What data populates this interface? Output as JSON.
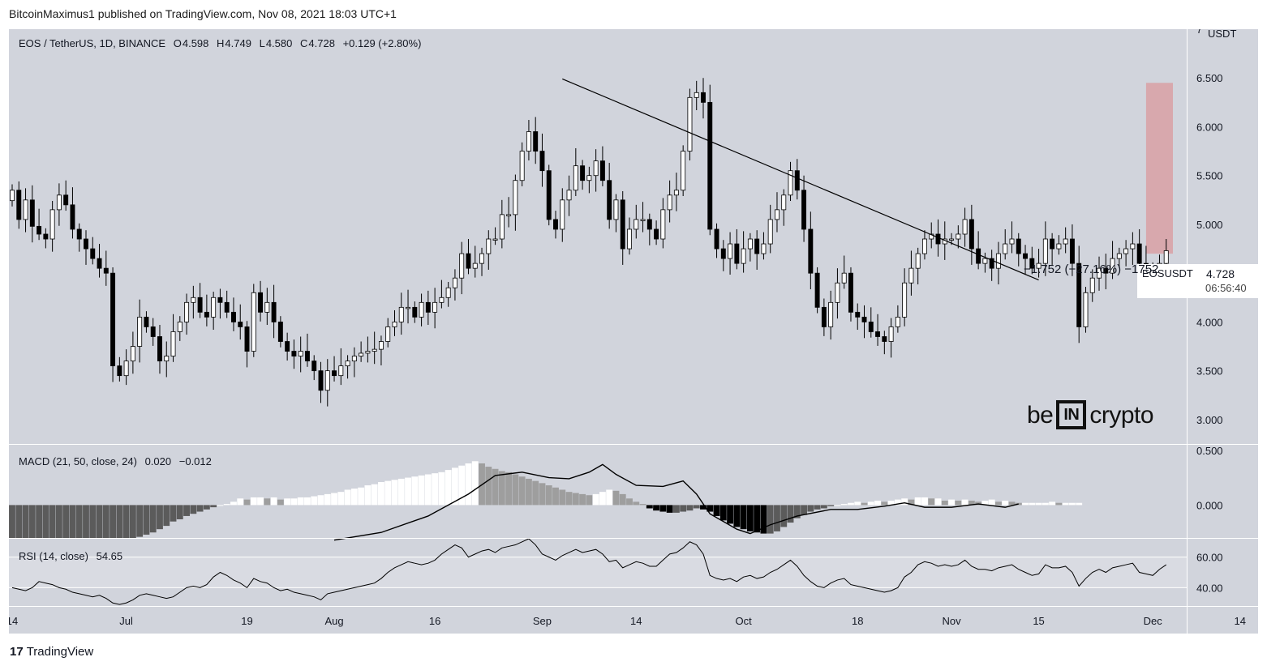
{
  "header": {
    "attribution": "BitcoinMaximus1 published on TradingView.com, Nov 08, 2021 18:03 UTC+1"
  },
  "legend": {
    "symbol": "EOS / TetherUS, 1D, BINANCE",
    "open_label": "O",
    "open": "4.598",
    "high_label": "H",
    "high": "4.749",
    "low_label": "L",
    "low": "4.580",
    "close_label": "C",
    "close": "4.728",
    "change": "+0.129 (+2.80%)"
  },
  "macd_legend": {
    "label": "MACD (21, 50, close, 24)",
    "v1": "0.020",
    "v2": "−0.012"
  },
  "rsi_legend": {
    "label": "RSI (14, close)",
    "value": "54.65"
  },
  "price_box": {
    "symbol": "EOSUSDT",
    "price": "4.728",
    "countdown": "06:56:40"
  },
  "measure_label": "−1.752 (−27.16%) −1752",
  "logo": {
    "left": "be",
    "box": "IN",
    "right": "crypto"
  },
  "footer": {
    "brand": "TradingView"
  },
  "colors": {
    "background": "#d1d4dc",
    "candle_up": "#ffffff",
    "candle_down": "#000000",
    "target_zone": "#d8a8ad",
    "macd_line": "#000000",
    "rsi_line": "#000000"
  },
  "chart_data": [
    {
      "type": "candlestick",
      "title": "EOS / TetherUS, 1D, BINANCE",
      "ylabel": "USDT",
      "ylim": [
        2.75,
        7.0
      ],
      "y_ticks": [
        "7",
        "6.500",
        "6.000",
        "5.500",
        "5.000",
        "4.500",
        "4.000",
        "3.500",
        "3.000"
      ],
      "x_ticks": [
        "14",
        "Jul",
        "19",
        "Aug",
        "16",
        "Sep",
        "14",
        "Oct",
        "18",
        "Nov",
        "15",
        "Dec",
        "14"
      ],
      "x_tick_days": [
        0,
        17,
        35,
        48,
        63,
        79,
        93,
        109,
        126,
        140,
        153,
        170,
        183
      ],
      "x_range_days": [
        0,
        184
      ],
      "last_price": 4.728,
      "trendline": {
        "from": {
          "day": 82,
          "price": 6.49
        },
        "to": {
          "day": 153,
          "price": 4.43
        }
      },
      "target_zone": {
        "day_from": 169,
        "day_to": 173,
        "price_from": 4.7,
        "price_to": 6.45
      },
      "grid": false,
      "closes": [
        5.35,
        5.05,
        5.25,
        4.98,
        4.9,
        4.85,
        5.15,
        5.3,
        5.2,
        4.95,
        4.85,
        4.75,
        4.65,
        4.55,
        4.5,
        3.55,
        3.45,
        3.6,
        3.75,
        4.05,
        3.95,
        3.85,
        3.6,
        3.65,
        3.9,
        4.0,
        4.2,
        4.25,
        4.1,
        4.05,
        4.25,
        4.2,
        4.1,
        4.0,
        3.95,
        3.7,
        4.3,
        4.1,
        4.2,
        4.0,
        3.8,
        3.7,
        3.65,
        3.7,
        3.6,
        3.5,
        3.3,
        3.5,
        3.45,
        3.55,
        3.6,
        3.65,
        3.68,
        3.7,
        3.72,
        3.8,
        3.95,
        4.0,
        4.15,
        4.15,
        4.05,
        4.2,
        4.1,
        4.2,
        4.25,
        4.35,
        4.45,
        4.7,
        4.55,
        4.6,
        4.7,
        4.85,
        4.85,
        5.1,
        5.1,
        5.45,
        5.75,
        5.95,
        5.75,
        5.55,
        5.05,
        4.95,
        5.25,
        5.35,
        5.6,
        5.45,
        5.5,
        5.65,
        5.45,
        5.05,
        5.25,
        4.75,
        4.95,
        5.05,
        5.05,
        4.95,
        4.85,
        5.15,
        5.3,
        5.35,
        5.75,
        6.3,
        6.35,
        6.25,
        4.95,
        4.75,
        4.65,
        4.8,
        4.6,
        4.75,
        4.85,
        4.7,
        4.8,
        5.05,
        5.15,
        5.3,
        5.55,
        5.35,
        4.95,
        4.5,
        4.15,
        3.95,
        4.2,
        4.4,
        4.5,
        4.1,
        4.05,
        4.0,
        3.9,
        3.85,
        3.8,
        3.95,
        4.05,
        4.4,
        4.55,
        4.7,
        4.85,
        4.9,
        4.8,
        4.85,
        4.85,
        4.9,
        5.05,
        4.75,
        4.6,
        4.65,
        4.55,
        4.7,
        4.8,
        4.85,
        4.7,
        4.65,
        4.55,
        4.6,
        4.85,
        4.75,
        4.8,
        4.85,
        4.6,
        3.95,
        4.3,
        4.45,
        4.55,
        4.5,
        4.65,
        4.7,
        4.75,
        4.8,
        4.6,
        4.55,
        4.48,
        4.6,
        4.73
      ]
    },
    {
      "type": "histogram+line",
      "title": "MACD (21, 50, close, 24)",
      "ylim": [
        -0.3,
        0.55
      ],
      "y_ticks": [
        "0.500",
        "0.000"
      ],
      "histogram": [
        -0.3,
        -0.3,
        -0.3,
        -0.3,
        -0.3,
        -0.3,
        -0.3,
        -0.3,
        -0.3,
        -0.3,
        -0.3,
        -0.3,
        -0.3,
        -0.3,
        -0.3,
        -0.3,
        -0.3,
        -0.3,
        -0.3,
        -0.29,
        -0.27,
        -0.25,
        -0.22,
        -0.19,
        -0.15,
        -0.13,
        -0.1,
        -0.08,
        -0.06,
        -0.04,
        -0.02,
        0.0,
        0.01,
        0.03,
        0.06,
        0.05,
        0.07,
        0.07,
        0.06,
        0.07,
        0.05,
        0.06,
        0.06,
        0.07,
        0.07,
        0.08,
        0.09,
        0.1,
        0.11,
        0.12,
        0.14,
        0.15,
        0.16,
        0.18,
        0.19,
        0.21,
        0.22,
        0.23,
        0.24,
        0.25,
        0.26,
        0.27,
        0.28,
        0.29,
        0.3,
        0.32,
        0.34,
        0.36,
        0.38,
        0.4,
        0.38,
        0.35,
        0.33,
        0.31,
        0.3,
        0.28,
        0.26,
        0.24,
        0.22,
        0.2,
        0.18,
        0.16,
        0.14,
        0.12,
        0.11,
        0.1,
        0.09,
        0.1,
        0.12,
        0.14,
        0.13,
        0.1,
        0.06,
        0.03,
        0.01,
        -0.03,
        -0.05,
        -0.06,
        -0.07,
        -0.07,
        -0.06,
        -0.05,
        -0.03,
        -0.04,
        -0.06,
        -0.1,
        -0.14,
        -0.17,
        -0.2,
        -0.22,
        -0.24,
        -0.25,
        -0.26,
        -0.26,
        -0.24,
        -0.2,
        -0.16,
        -0.12,
        -0.09,
        -0.06,
        -0.04,
        -0.03,
        -0.01,
        0.0,
        0.01,
        0.02,
        0.03,
        0.02,
        0.03,
        0.04,
        0.03,
        0.04,
        0.05,
        0.06,
        0.05,
        0.07,
        0.07,
        0.06,
        0.06,
        0.04,
        0.05,
        0.04,
        0.05,
        0.04,
        0.03,
        0.04,
        0.05,
        0.03,
        0.04,
        0.03,
        0.02,
        0.02,
        0.02,
        0.02,
        0.02,
        0.03,
        0.02,
        0.02,
        0.02,
        0.02
      ],
      "macd_line_points": [
        [
          48,
          -0.32
        ],
        [
          55,
          -0.25
        ],
        [
          62,
          -0.1
        ],
        [
          68,
          0.1
        ],
        [
          72,
          0.27
        ],
        [
          76,
          0.3
        ],
        [
          80,
          0.25
        ],
        [
          83,
          0.24
        ],
        [
          86,
          0.3
        ],
        [
          88,
          0.37
        ],
        [
          90,
          0.28
        ],
        [
          93,
          0.18
        ],
        [
          97,
          0.17
        ],
        [
          100,
          0.22
        ],
        [
          102,
          0.1
        ],
        [
          104,
          -0.08
        ],
        [
          108,
          -0.22
        ],
        [
          110,
          -0.26
        ],
        [
          113,
          -0.18
        ],
        [
          117,
          -0.1
        ],
        [
          122,
          -0.04
        ],
        [
          126,
          -0.04
        ],
        [
          130,
          -0.01
        ],
        [
          133,
          0.02
        ],
        [
          136,
          -0.02
        ],
        [
          140,
          -0.02
        ],
        [
          144,
          0.01
        ],
        [
          148,
          -0.02
        ],
        [
          150,
          0.01
        ]
      ]
    },
    {
      "type": "line",
      "title": "RSI (14, close)",
      "ylim": [
        28,
        72
      ],
      "y_ticks": [
        "60.00",
        "40.00"
      ],
      "band": [
        40,
        60
      ],
      "values": [
        40,
        39,
        38,
        40,
        44,
        43,
        42,
        40,
        39,
        37,
        36,
        35,
        34,
        35,
        33,
        30,
        29,
        30,
        32,
        35,
        36,
        35,
        34,
        33,
        34,
        37,
        40,
        41,
        40,
        42,
        47,
        50,
        48,
        45,
        43,
        40,
        46,
        44,
        43,
        40,
        38,
        39,
        37,
        36,
        35,
        34,
        32,
        36,
        37,
        38,
        39,
        40,
        41,
        42,
        43,
        46,
        50,
        53,
        55,
        57,
        56,
        55,
        56,
        58,
        62,
        65,
        68,
        66,
        60,
        62,
        64,
        65,
        63,
        66,
        67,
        68,
        70,
        74,
        68,
        62,
        60,
        58,
        61,
        63,
        65,
        63,
        64,
        65,
        62,
        57,
        58,
        53,
        55,
        57,
        56,
        54,
        54,
        58,
        62,
        63,
        66,
        70,
        68,
        62,
        48,
        46,
        45,
        46,
        44,
        47,
        48,
        46,
        47,
        50,
        52,
        55,
        58,
        54,
        48,
        44,
        41,
        40,
        43,
        45,
        46,
        42,
        41,
        40,
        39,
        38,
        37,
        38,
        40,
        47,
        50,
        55,
        57,
        56,
        54,
        55,
        54,
        55,
        58,
        54,
        52,
        52,
        51,
        53,
        54,
        55,
        52,
        50,
        48,
        49,
        55,
        53,
        53,
        54,
        50,
        41,
        46,
        50,
        52,
        50,
        53,
        54,
        55,
        56,
        50,
        49,
        48,
        52,
        55
      ]
    }
  ]
}
